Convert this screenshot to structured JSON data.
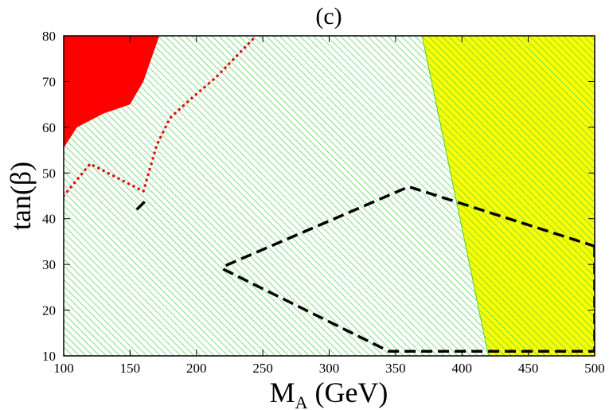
{
  "chart_data": {
    "type": "area",
    "title": "(c)",
    "xlabel": {
      "main": "M",
      "sub": "A",
      "unit": " (GeV)"
    },
    "ylabel": "tan(β)",
    "xlim": [
      100,
      500
    ],
    "ylim": [
      10,
      80
    ],
    "xticks": [
      100,
      150,
      200,
      250,
      300,
      350,
      400,
      450,
      500
    ],
    "yticks": [
      10,
      20,
      30,
      40,
      50,
      60,
      70,
      80
    ],
    "grid": false,
    "regions": [
      {
        "kind": "hatched-background",
        "fill": "#ffffff",
        "hatch_color": "#4ccd4c",
        "polygon": [
          [
            100,
            10
          ],
          [
            500,
            10
          ],
          [
            500,
            80
          ],
          [
            100,
            80
          ]
        ]
      },
      {
        "kind": "hatched",
        "fill": "#ffff00",
        "hatch_color": "#4ccd4c",
        "polygon": [
          [
            370,
            80
          ],
          [
            500,
            80
          ],
          [
            500,
            10
          ],
          [
            420,
            10
          ]
        ]
      },
      {
        "kind": "solid",
        "fill": "#ff0000",
        "polygon": [
          [
            100,
            80
          ],
          [
            172,
            80
          ],
          [
            160,
            70
          ],
          [
            150,
            65
          ],
          [
            130,
            63
          ],
          [
            110,
            60
          ],
          [
            100,
            55.5
          ]
        ]
      }
    ],
    "series": [
      {
        "style": "dotted",
        "color": "#e01010",
        "points": [
          [
            100,
            45
          ],
          [
            120,
            52
          ],
          [
            160,
            46
          ],
          [
            170,
            56
          ],
          [
            180,
            62
          ],
          [
            195,
            66
          ],
          [
            215,
            71
          ],
          [
            245,
            80
          ]
        ]
      },
      {
        "style": "dashed",
        "color": "#000000",
        "points": [
          [
            155,
            42
          ],
          [
            162,
            44
          ]
        ]
      },
      {
        "style": "dashed",
        "color": "#000000",
        "points": [
          [
            500,
            34
          ],
          [
            500,
            11
          ],
          [
            345,
            11
          ],
          [
            220,
            29
          ],
          [
            220,
            29.5
          ],
          [
            360,
            47
          ],
          [
            500,
            34
          ]
        ]
      }
    ]
  }
}
